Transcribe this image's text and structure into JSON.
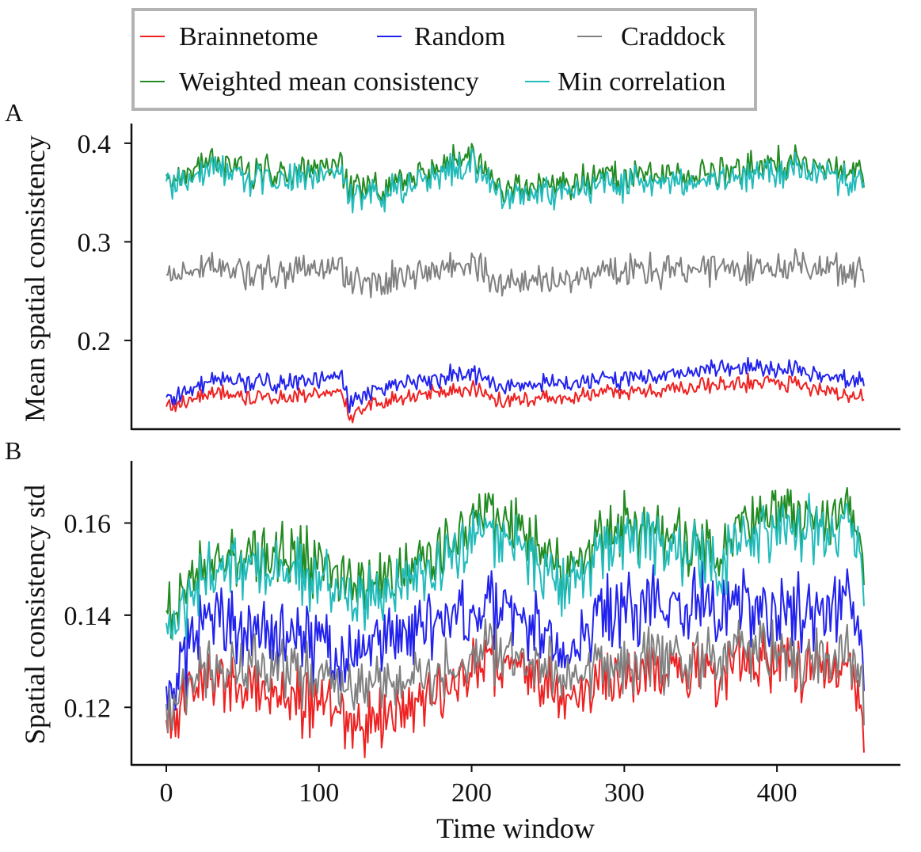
{
  "figure": {
    "legend": {
      "placement": "top-center",
      "entries": [
        {
          "label": "Brainnetome",
          "color": "#ee2222"
        },
        {
          "label": "Random",
          "color": "#2222ee"
        },
        {
          "label": "Craddock",
          "color": "#808080"
        },
        {
          "label": "Weighted mean consistency",
          "color": "#228b22"
        },
        {
          "label": "Min correlation",
          "color": "#22bbbb"
        }
      ]
    }
  },
  "chart_data": [
    {
      "type": "line",
      "panel": "A",
      "ylabel": "Mean spatial consistency",
      "xlabel": "",
      "xlim": [
        0,
        457
      ],
      "ylim": [
        0.11,
        0.42
      ],
      "yticks": [
        0.2,
        0.3,
        0.4
      ],
      "ytick_labels": [
        "0.2",
        "0.3",
        "0.4"
      ],
      "grid": false,
      "n_points": 458,
      "series": [
        {
          "name": "Brainnetome",
          "color": "#ee2222",
          "mean": 0.14,
          "spread": 0.006,
          "trend_x": [
            0,
            40,
            55,
            115,
            120,
            140,
            200,
            220,
            300,
            360,
            400,
            457
          ],
          "trend_y": [
            0.131,
            0.148,
            0.14,
            0.147,
            0.124,
            0.138,
            0.152,
            0.139,
            0.147,
            0.155,
            0.158,
            0.142
          ]
        },
        {
          "name": "Random",
          "color": "#2222ee",
          "mean": 0.158,
          "spread": 0.007,
          "trend_x": [
            0,
            40,
            55,
            115,
            120,
            140,
            200,
            220,
            300,
            360,
            400,
            457
          ],
          "trend_y": [
            0.14,
            0.163,
            0.155,
            0.162,
            0.134,
            0.152,
            0.168,
            0.154,
            0.161,
            0.172,
            0.172,
            0.158
          ]
        },
        {
          "name": "Craddock",
          "color": "#808080",
          "mean": 0.266,
          "spread": 0.012,
          "trend_x": [
            0,
            40,
            55,
            115,
            120,
            140,
            200,
            220,
            300,
            360,
            400,
            457
          ],
          "trend_y": [
            0.262,
            0.275,
            0.268,
            0.272,
            0.255,
            0.262,
            0.28,
            0.258,
            0.27,
            0.272,
            0.276,
            0.27
          ]
        },
        {
          "name": "Weighted mean consistency",
          "color": "#228b22",
          "mean": 0.366,
          "spread": 0.012,
          "trend_x": [
            0,
            40,
            55,
            115,
            120,
            140,
            200,
            220,
            300,
            360,
            400,
            457
          ],
          "trend_y": [
            0.363,
            0.382,
            0.37,
            0.376,
            0.353,
            0.355,
            0.388,
            0.355,
            0.366,
            0.37,
            0.382,
            0.37
          ]
        },
        {
          "name": "Min correlation",
          "color": "#22bbbb",
          "mean": 0.358,
          "spread": 0.012,
          "trend_x": [
            0,
            40,
            55,
            115,
            120,
            140,
            200,
            220,
            300,
            360,
            400,
            457
          ],
          "trend_y": [
            0.355,
            0.374,
            0.362,
            0.368,
            0.345,
            0.347,
            0.38,
            0.347,
            0.358,
            0.362,
            0.374,
            0.362
          ]
        }
      ]
    },
    {
      "type": "line",
      "panel": "B",
      "ylabel": "Spatial consistency std",
      "xlabel": "Time window",
      "xlim": [
        0,
        457
      ],
      "ylim": [
        0.1075,
        0.1735
      ],
      "xticks": [
        0,
        100,
        200,
        300,
        400
      ],
      "xtick_labels": [
        "0",
        "100",
        "200",
        "300",
        "400"
      ],
      "yticks": [
        0.12,
        0.14,
        0.16
      ],
      "ytick_labels": [
        "0.12",
        "0.14",
        "0.16"
      ],
      "grid": false,
      "n_points": 458,
      "series": [
        {
          "name": "Brainnetome",
          "color": "#ee2222",
          "mean": 0.125,
          "spread": 0.005,
          "trend_x": [
            0,
            30,
            55,
            120,
            130,
            180,
            205,
            260,
            300,
            360,
            400,
            450,
            457
          ],
          "trend_y": [
            0.117,
            0.126,
            0.125,
            0.118,
            0.116,
            0.123,
            0.131,
            0.123,
            0.126,
            0.128,
            0.13,
            0.127,
            0.114
          ]
        },
        {
          "name": "Random",
          "color": "#2222ee",
          "mean": 0.138,
          "spread": 0.006,
          "trend_x": [
            0,
            30,
            55,
            120,
            130,
            180,
            205,
            260,
            300,
            360,
            400,
            450,
            457
          ],
          "trend_y": [
            0.124,
            0.14,
            0.138,
            0.13,
            0.133,
            0.14,
            0.143,
            0.133,
            0.142,
            0.142,
            0.142,
            0.14,
            0.13
          ]
        },
        {
          "name": "Craddock",
          "color": "#808080",
          "mean": 0.128,
          "spread": 0.005,
          "trend_x": [
            0,
            30,
            55,
            120,
            130,
            180,
            205,
            260,
            300,
            360,
            400,
            450,
            457
          ],
          "trend_y": [
            0.12,
            0.128,
            0.13,
            0.124,
            0.124,
            0.127,
            0.133,
            0.127,
            0.13,
            0.131,
            0.132,
            0.13,
            0.123
          ]
        },
        {
          "name": "Weighted mean consistency",
          "color": "#228b22",
          "mean": 0.152,
          "spread": 0.005,
          "trend_x": [
            0,
            30,
            55,
            120,
            130,
            180,
            205,
            260,
            300,
            360,
            400,
            450,
            457
          ],
          "trend_y": [
            0.14,
            0.152,
            0.155,
            0.148,
            0.146,
            0.154,
            0.163,
            0.15,
            0.16,
            0.154,
            0.163,
            0.16,
            0.148
          ]
        },
        {
          "name": "Min correlation",
          "color": "#22bbbb",
          "mean": 0.149,
          "spread": 0.005,
          "trend_x": [
            0,
            30,
            55,
            120,
            130,
            180,
            205,
            260,
            300,
            360,
            400,
            450,
            457
          ],
          "trend_y": [
            0.137,
            0.149,
            0.152,
            0.145,
            0.143,
            0.151,
            0.16,
            0.147,
            0.157,
            0.151,
            0.16,
            0.157,
            0.145
          ]
        }
      ]
    }
  ]
}
